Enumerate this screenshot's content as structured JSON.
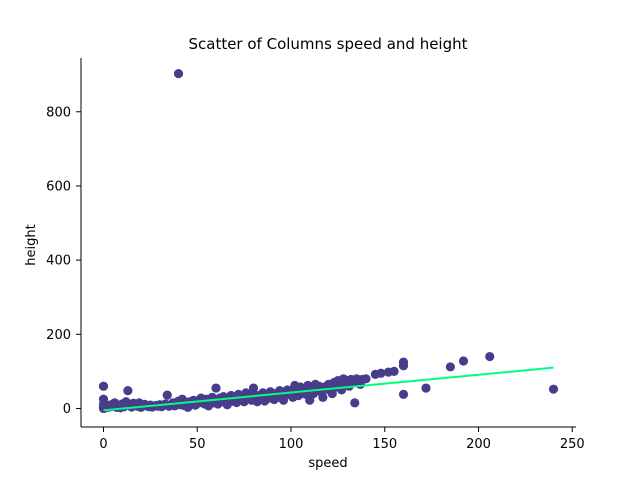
{
  "chart_data": {
    "type": "scatter",
    "title": "Scatter of Columns speed and height",
    "xlabel": "speed",
    "ylabel": "height",
    "xlim": [
      -12,
      252
    ],
    "ylim": [
      -50,
      945
    ],
    "x_ticks": [
      0,
      50,
      100,
      150,
      200,
      250
    ],
    "y_ticks": [
      0,
      200,
      400,
      600,
      800
    ],
    "x_tick_labels": [
      "0",
      "50",
      "100",
      "150",
      "200",
      "250"
    ],
    "y_tick_labels": [
      "0",
      "200",
      "400",
      "600",
      "800"
    ],
    "grid": false,
    "legend": "none",
    "colors": {
      "points": "#483d8b",
      "trendline": "#00ff7f",
      "axis": "#000000"
    },
    "series": [
      {
        "type": "scatter",
        "points": [
          [
            0,
            0
          ],
          [
            0,
            5
          ],
          [
            0,
            12
          ],
          [
            0,
            25
          ],
          [
            0,
            60
          ],
          [
            1,
            2
          ],
          [
            2,
            8
          ],
          [
            3,
            4
          ],
          [
            4,
            10
          ],
          [
            5,
            6
          ],
          [
            6,
            15
          ],
          [
            7,
            3
          ],
          [
            8,
            9
          ],
          [
            9,
            2
          ],
          [
            10,
            12
          ],
          [
            11,
            5
          ],
          [
            12,
            18
          ],
          [
            13,
            48
          ],
          [
            14,
            8
          ],
          [
            15,
            4
          ],
          [
            16,
            14
          ],
          [
            17,
            10
          ],
          [
            18,
            6
          ],
          [
            19,
            15
          ],
          [
            20,
            3
          ],
          [
            21,
            7
          ],
          [
            22,
            11
          ],
          [
            24,
            5
          ],
          [
            25,
            9
          ],
          [
            26,
            4
          ],
          [
            28,
            8
          ],
          [
            29,
            6
          ],
          [
            30,
            10
          ],
          [
            31,
            5
          ],
          [
            32,
            8
          ],
          [
            33,
            12
          ],
          [
            34,
            36
          ],
          [
            35,
            6
          ],
          [
            36,
            9
          ],
          [
            37,
            15
          ],
          [
            38,
            7
          ],
          [
            39,
            12
          ],
          [
            40,
            903
          ],
          [
            40,
            20
          ],
          [
            41,
            10
          ],
          [
            42,
            25
          ],
          [
            43,
            8
          ],
          [
            44,
            16
          ],
          [
            45,
            3
          ],
          [
            46,
            18
          ],
          [
            47,
            12
          ],
          [
            48,
            22
          ],
          [
            49,
            9
          ],
          [
            50,
            20
          ],
          [
            51,
            15
          ],
          [
            52,
            28
          ],
          [
            53,
            18
          ],
          [
            54,
            12
          ],
          [
            55,
            25
          ],
          [
            56,
            7
          ],
          [
            57,
            21
          ],
          [
            58,
            30
          ],
          [
            59,
            15
          ],
          [
            60,
            55
          ],
          [
            60,
            24
          ],
          [
            61,
            12
          ],
          [
            62,
            28
          ],
          [
            63,
            18
          ],
          [
            64,
            32
          ],
          [
            65,
            22
          ],
          [
            66,
            10
          ],
          [
            67,
            26
          ],
          [
            68,
            35
          ],
          [
            69,
            20
          ],
          [
            70,
            30
          ],
          [
            71,
            16
          ],
          [
            72,
            38
          ],
          [
            73,
            25
          ],
          [
            74,
            32
          ],
          [
            75,
            18
          ],
          [
            76,
            42
          ],
          [
            77,
            28
          ],
          [
            78,
            35
          ],
          [
            79,
            22
          ],
          [
            80,
            55
          ],
          [
            80,
            40
          ],
          [
            81,
            30
          ],
          [
            82,
            18
          ],
          [
            83,
            35
          ],
          [
            84,
            26
          ],
          [
            85,
            42
          ],
          [
            86,
            20
          ],
          [
            87,
            36
          ],
          [
            88,
            28
          ],
          [
            89,
            45
          ],
          [
            90,
            32
          ],
          [
            91,
            24
          ],
          [
            92,
            40
          ],
          [
            93,
            30
          ],
          [
            94,
            48
          ],
          [
            95,
            35
          ],
          [
            96,
            22
          ],
          [
            97,
            42
          ],
          [
            98,
            50
          ],
          [
            99,
            38
          ],
          [
            100,
            45
          ],
          [
            101,
            30
          ],
          [
            102,
            62
          ],
          [
            103,
            48
          ],
          [
            104,
            35
          ],
          [
            105,
            58
          ],
          [
            106,
            42
          ],
          [
            107,
            52
          ],
          [
            108,
            38
          ],
          [
            109,
            62
          ],
          [
            110,
            22
          ],
          [
            110,
            48
          ],
          [
            111,
            55
          ],
          [
            112,
            40
          ],
          [
            113,
            65
          ],
          [
            114,
            50
          ],
          [
            115,
            60
          ],
          [
            116,
            45
          ],
          [
            117,
            30
          ],
          [
            118,
            58
          ],
          [
            119,
            52
          ],
          [
            120,
            65
          ],
          [
            121,
            48
          ],
          [
            122,
            40
          ],
          [
            123,
            70
          ],
          [
            124,
            58
          ],
          [
            125,
            75
          ],
          [
            126,
            62
          ],
          [
            127,
            50
          ],
          [
            128,
            80
          ],
          [
            129,
            68
          ],
          [
            130,
            75
          ],
          [
            131,
            60
          ],
          [
            132,
            78
          ],
          [
            133,
            70
          ],
          [
            134,
            15
          ],
          [
            135,
            80
          ],
          [
            136,
            72
          ],
          [
            137,
            65
          ],
          [
            138,
            78
          ],
          [
            140,
            80
          ],
          [
            145,
            92
          ],
          [
            148,
            95
          ],
          [
            152,
            98
          ],
          [
            155,
            100
          ],
          [
            160,
            125
          ],
          [
            160,
            115
          ],
          [
            160,
            38
          ],
          [
            172,
            55
          ],
          [
            185,
            112
          ],
          [
            192,
            128
          ],
          [
            206,
            140
          ],
          [
            240,
            52
          ]
        ]
      },
      {
        "type": "line",
        "name": "",
        "points": [
          [
            0,
            -5
          ],
          [
            240,
            110
          ]
        ]
      }
    ]
  }
}
